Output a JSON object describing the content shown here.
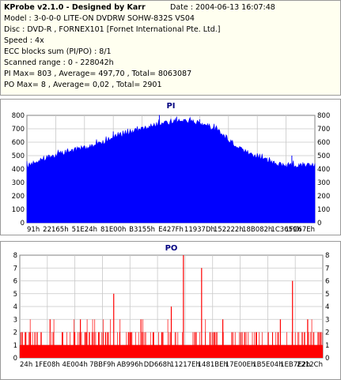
{
  "header": {
    "app_title": "KProbe v2.1.0 - Designed by Karr",
    "date": "Date : 2004-06-13 16:07:48",
    "model": "Model : 3-0-0-0 LITE-ON DVDRW SOHW-832S  VS04",
    "disc": "Disc : DVD-R , FORNEX101 [Fornet International Pte. Ltd.]",
    "speed": "Speed : 4x",
    "ecc": "ECC blocks sum (PI/PO) : 8/1",
    "range": "Scanned range : 0 - 228042h",
    "pi_stats": "PI Max= 803 , Average= 497,70 , Total= 8063087",
    "po_stats": "PO Max= 8 , Average= 0,02 , Total= 2901"
  },
  "colors": {
    "pi_fill": "#0000ff",
    "po_bar": "#ff0000",
    "grid": "#c8c8c8",
    "title": "#000080",
    "info_bg": "#fffff0"
  },
  "chart_data": [
    {
      "type": "area",
      "title": "PI",
      "xlabel": "",
      "ylabel": "",
      "ylim": [
        0,
        800
      ],
      "yticks": [
        "0",
        "100",
        "200",
        "300",
        "400",
        "500",
        "600",
        "700",
        "800"
      ],
      "xtick_labels": [
        "91h",
        "22165h",
        "51E24h",
        "81E00h",
        "B3155h",
        "E427Fh",
        "11937Dh",
        "152222h",
        "18B082h",
        "1C3659h",
        "1FC67Eh"
      ],
      "grid": true,
      "x": [
        0,
        0.05,
        0.1,
        0.15,
        0.2,
        0.25,
        0.3,
        0.35,
        0.4,
        0.45,
        0.5,
        0.55,
        0.6,
        0.65,
        0.7,
        0.75,
        0.8,
        0.85,
        0.9,
        0.95,
        1.0
      ],
      "values": [
        420,
        470,
        500,
        530,
        560,
        590,
        630,
        670,
        700,
        730,
        750,
        760,
        745,
        700,
        620,
        540,
        490,
        450,
        420,
        420,
        430
      ],
      "peaks": [
        {
          "x": 0.3,
          "value": 680
        },
        {
          "x": 0.46,
          "value": 803
        },
        {
          "x": 0.52,
          "value": 790
        },
        {
          "x": 0.6,
          "value": 770
        },
        {
          "x": 0.92,
          "value": 500
        }
      ]
    },
    {
      "type": "bar",
      "title": "PO",
      "xlabel": "",
      "ylabel": "",
      "ylim": [
        0,
        8
      ],
      "yticks": [
        "0",
        "1",
        "2",
        "3",
        "4",
        "5",
        "6",
        "7",
        "8"
      ],
      "xtick_labels": [
        "24h",
        "1FE08h",
        "4E004h",
        "7BBF9h",
        "AB996h",
        "DD668h",
        "11217Eh",
        "1481BEh",
        "17E00Eh",
        "1B5E04h",
        "1EB7E2h",
        "2212Ch"
      ],
      "grid": true,
      "baseline": {
        "from": 0,
        "to": 1,
        "value": 1
      },
      "x": [
        0.02,
        0.05,
        0.1,
        0.14,
        0.18,
        0.2,
        0.22,
        0.26,
        0.31,
        0.33,
        0.36,
        0.4,
        0.44,
        0.47,
        0.5,
        0.54,
        0.58,
        0.6,
        0.64,
        0.67,
        0.7,
        0.73,
        0.78,
        0.82,
        0.86,
        0.9,
        0.94,
        0.97,
        0.99
      ],
      "values": [
        2,
        2,
        3,
        2,
        2,
        3,
        2,
        2,
        5,
        2,
        2,
        3,
        2,
        2,
        4,
        8,
        2,
        7,
        2,
        3,
        2,
        2,
        2,
        2,
        3,
        6,
        2,
        2,
        2
      ]
    }
  ]
}
